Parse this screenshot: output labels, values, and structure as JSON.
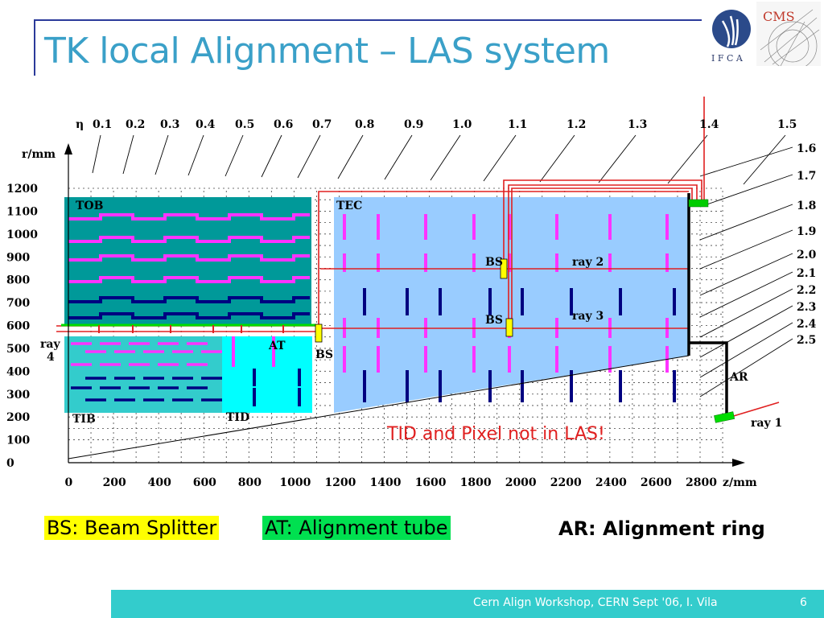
{
  "slide": {
    "title": "TK local Alignment – LAS system",
    "footer": "Cern Align Workshop, CERN Sept '06,   I. Vila",
    "page_number": "6"
  },
  "logos": {
    "ifca": "I F C A",
    "cms": "CMS"
  },
  "diagram": {
    "eta_symbol": "η",
    "eta_top": [
      "0.1",
      "0.2",
      "0.3",
      "0.4",
      "0.5",
      "0.6",
      "0.7",
      "0.8",
      "0.9",
      "1.0",
      "1.1",
      "1.2",
      "1.3",
      "1.4",
      "1.5"
    ],
    "eta_right": [
      "1.6",
      "1.7",
      "1.8",
      "1.9",
      "2.0",
      "2.1",
      "2.2",
      "2.3",
      "2.4",
      "2.5"
    ],
    "y_axis_label": "r/mm",
    "x_axis_label": "z/mm",
    "y_ticks": [
      "1200",
      "1100",
      "1000",
      "900",
      "800",
      "700",
      "600",
      "500",
      "400",
      "300",
      "200",
      "100",
      "0"
    ],
    "x_ticks": [
      "0",
      "200",
      "400",
      "600",
      "800",
      "1000",
      "1200",
      "1400",
      "1600",
      "1800",
      "2000",
      "2200",
      "2400",
      "2600",
      "2800"
    ],
    "regions": {
      "tob": "TOB",
      "tec": "TEC",
      "tib": "TIB",
      "tid": "TID"
    },
    "labels": {
      "bs": "BS",
      "at": "AT",
      "ar": "AR",
      "ray1": "ray 1",
      "ray2": "ray 2",
      "ray3": "ray 3",
      "ray4_a": "ray",
      "ray4_b": "4"
    },
    "note": "TID and Pixel not in LAS!"
  },
  "legend": {
    "bs": "BS: Beam Splitter",
    "at": "AT: Alignment tube",
    "ar": "AR: Alignment ring"
  },
  "colors": {
    "title": "#3aa0c8",
    "tob": "#009999",
    "tib": "#33cccc",
    "tid": "#00ffff",
    "tec": "#99ccff",
    "laser": "#e02020",
    "module_magenta": "#ff33ff",
    "module_navy": "#000080",
    "footer": "#33cccc"
  }
}
